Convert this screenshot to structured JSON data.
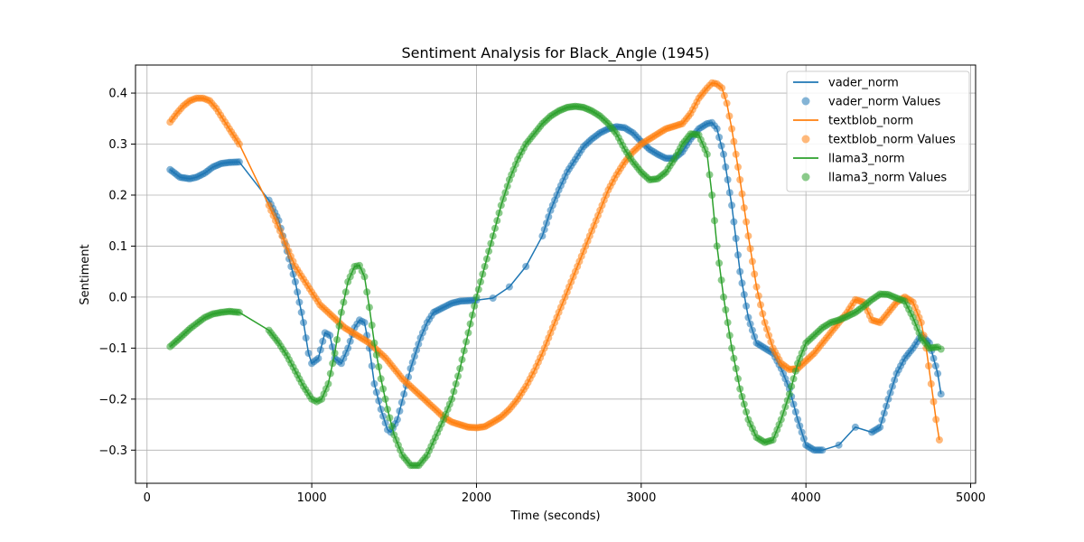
{
  "chart_data": {
    "type": "line",
    "title": "Sentiment Analysis for Black_Angle (1945)",
    "xlabel": "Time (seconds)",
    "ylabel": "Sentiment",
    "xlim": [
      -70,
      5030
    ],
    "ylim": [
      -0.365,
      0.455
    ],
    "xticks": [
      0,
      1000,
      2000,
      3000,
      4000,
      5000
    ],
    "yticks": [
      -0.3,
      -0.2,
      -0.1,
      0.0,
      0.1,
      0.2,
      0.3,
      0.4
    ],
    "ytick_labels": [
      "−0.3",
      "−0.2",
      "−0.1",
      "0.0",
      "0.1",
      "0.2",
      "0.3",
      "0.4"
    ],
    "grid": true,
    "legend_position": "top-right",
    "legend": [
      "vader_norm",
      "vader_norm Values",
      "textblob_norm",
      "textblob_norm Values",
      "llama3_norm",
      "llama3_norm Values"
    ],
    "series": [
      {
        "name": "vader_norm",
        "values_name": "vader_norm Values",
        "color": "#1f77b4",
        "x": [
          140,
          200,
          260,
          300,
          350,
          400,
          450,
          500,
          560,
          740,
          800,
          850,
          900,
          950,
          980,
          1000,
          1040,
          1080,
          1110,
          1140,
          1180,
          1220,
          1260,
          1290,
          1320,
          1350,
          1380,
          1420,
          1460,
          1480,
          1520,
          1560,
          1600,
          1660,
          1700,
          1740,
          1800,
          1850,
          1900,
          1950,
          2000,
          2100,
          2200,
          2300,
          2400,
          2450,
          2500,
          2550,
          2600,
          2650,
          2700,
          2750,
          2800,
          2850,
          2900,
          2950,
          3000,
          3050,
          3100,
          3150,
          3200,
          3250,
          3300,
          3350,
          3400,
          3430,
          3460,
          3500,
          3550,
          3600,
          3650,
          3700,
          3750,
          3800,
          3850,
          3900,
          3950,
          4000,
          4050,
          4100,
          4200,
          4300,
          4400,
          4450,
          4500,
          4550,
          4600,
          4650,
          4700,
          4750,
          4800,
          4820
        ],
        "y": [
          0.25,
          0.235,
          0.232,
          0.235,
          0.243,
          0.255,
          0.262,
          0.264,
          0.265,
          0.19,
          0.15,
          0.09,
          0.03,
          -0.05,
          -0.11,
          -0.13,
          -0.12,
          -0.07,
          -0.075,
          -0.12,
          -0.13,
          -0.1,
          -0.06,
          -0.045,
          -0.05,
          -0.1,
          -0.17,
          -0.22,
          -0.26,
          -0.265,
          -0.24,
          -0.19,
          -0.14,
          -0.08,
          -0.05,
          -0.03,
          -0.02,
          -0.012,
          -0.008,
          -0.007,
          -0.006,
          -0.002,
          0.02,
          0.06,
          0.12,
          0.17,
          0.21,
          0.245,
          0.27,
          0.295,
          0.31,
          0.322,
          0.33,
          0.334,
          0.332,
          0.322,
          0.305,
          0.29,
          0.28,
          0.272,
          0.272,
          0.285,
          0.31,
          0.33,
          0.34,
          0.342,
          0.33,
          0.28,
          0.18,
          0.05,
          -0.04,
          -0.09,
          -0.1,
          -0.11,
          -0.14,
          -0.18,
          -0.24,
          -0.29,
          -0.3,
          -0.3,
          -0.29,
          -0.255,
          -0.265,
          -0.255,
          -0.2,
          -0.15,
          -0.12,
          -0.1,
          -0.075,
          -0.09,
          -0.15,
          -0.19
        ]
      },
      {
        "name": "textblob_norm",
        "values_name": "textblob_norm Values",
        "color": "#ff7f0e",
        "x": [
          140,
          180,
          220,
          260,
          300,
          340,
          380,
          420,
          460,
          500,
          560,
          740,
          780,
          820,
          860,
          900,
          950,
          1000,
          1050,
          1100,
          1150,
          1200,
          1250,
          1300,
          1350,
          1400,
          1450,
          1500,
          1550,
          1600,
          1650,
          1700,
          1750,
          1800,
          1850,
          1900,
          1950,
          2000,
          2050,
          2100,
          2150,
          2200,
          2250,
          2300,
          2350,
          2400,
          2450,
          2500,
          2550,
          2600,
          2650,
          2700,
          2750,
          2800,
          2850,
          2900,
          2950,
          3000,
          3050,
          3100,
          3150,
          3200,
          3250,
          3300,
          3350,
          3400,
          3430,
          3460,
          3490,
          3520,
          3550,
          3600,
          3650,
          3700,
          3750,
          3800,
          3850,
          3900,
          3950,
          4000,
          4050,
          4100,
          4150,
          4200,
          4250,
          4300,
          4350,
          4400,
          4450,
          4500,
          4550,
          4600,
          4650,
          4700,
          4730,
          4760,
          4790,
          4810
        ],
        "y": [
          0.343,
          0.36,
          0.375,
          0.385,
          0.39,
          0.39,
          0.385,
          0.37,
          0.35,
          0.33,
          0.3,
          0.18,
          0.15,
          0.12,
          0.09,
          0.06,
          0.035,
          0.01,
          -0.015,
          -0.03,
          -0.045,
          -0.06,
          -0.07,
          -0.08,
          -0.09,
          -0.105,
          -0.12,
          -0.14,
          -0.16,
          -0.175,
          -0.19,
          -0.205,
          -0.22,
          -0.235,
          -0.245,
          -0.25,
          -0.255,
          -0.256,
          -0.254,
          -0.245,
          -0.235,
          -0.22,
          -0.2,
          -0.175,
          -0.145,
          -0.11,
          -0.07,
          -0.03,
          0.01,
          0.05,
          0.09,
          0.13,
          0.17,
          0.21,
          0.24,
          0.265,
          0.285,
          0.3,
          0.31,
          0.32,
          0.33,
          0.335,
          0.34,
          0.36,
          0.39,
          0.41,
          0.42,
          0.418,
          0.41,
          0.38,
          0.33,
          0.23,
          0.12,
          0.02,
          -0.05,
          -0.1,
          -0.13,
          -0.142,
          -0.14,
          -0.125,
          -0.11,
          -0.09,
          -0.07,
          -0.05,
          -0.03,
          -0.005,
          -0.01,
          -0.045,
          -0.05,
          -0.03,
          -0.01,
          0.0,
          -0.01,
          -0.05,
          -0.1,
          -0.17,
          -0.24,
          -0.28
        ]
      },
      {
        "name": "llama3_norm",
        "values_name": "llama3_norm Values",
        "color": "#2ca02c",
        "x": [
          140,
          200,
          260,
          300,
          350,
          400,
          450,
          500,
          560,
          740,
          800,
          850,
          900,
          950,
          1000,
          1030,
          1060,
          1100,
          1140,
          1180,
          1220,
          1260,
          1290,
          1320,
          1350,
          1380,
          1420,
          1460,
          1500,
          1550,
          1600,
          1650,
          1700,
          1750,
          1800,
          1850,
          1900,
          1950,
          2000,
          2050,
          2100,
          2150,
          2200,
          2250,
          2300,
          2350,
          2400,
          2450,
          2500,
          2550,
          2600,
          2650,
          2700,
          2750,
          2800,
          2850,
          2900,
          2950,
          3000,
          3050,
          3100,
          3150,
          3200,
          3250,
          3300,
          3350,
          3400,
          3430,
          3460,
          3500,
          3550,
          3600,
          3650,
          3700,
          3750,
          3800,
          3850,
          3900,
          3950,
          4000,
          4050,
          4100,
          4150,
          4200,
          4250,
          4300,
          4350,
          4400,
          4450,
          4500,
          4550,
          4600,
          4650,
          4700,
          4750,
          4800,
          4820
        ],
        "y": [
          -0.097,
          -0.08,
          -0.062,
          -0.052,
          -0.04,
          -0.033,
          -0.03,
          -0.028,
          -0.03,
          -0.065,
          -0.09,
          -0.115,
          -0.145,
          -0.175,
          -0.2,
          -0.205,
          -0.2,
          -0.17,
          -0.11,
          -0.03,
          0.03,
          0.06,
          0.062,
          0.04,
          -0.02,
          -0.09,
          -0.16,
          -0.22,
          -0.27,
          -0.31,
          -0.33,
          -0.33,
          -0.31,
          -0.275,
          -0.24,
          -0.2,
          -0.14,
          -0.07,
          0.0,
          0.06,
          0.12,
          0.18,
          0.23,
          0.27,
          0.3,
          0.32,
          0.34,
          0.355,
          0.365,
          0.372,
          0.374,
          0.372,
          0.365,
          0.355,
          0.34,
          0.32,
          0.29,
          0.265,
          0.245,
          0.23,
          0.232,
          0.245,
          0.27,
          0.3,
          0.32,
          0.318,
          0.28,
          0.2,
          0.1,
          0.0,
          -0.1,
          -0.18,
          -0.24,
          -0.275,
          -0.285,
          -0.28,
          -0.24,
          -0.19,
          -0.13,
          -0.09,
          -0.075,
          -0.06,
          -0.05,
          -0.045,
          -0.038,
          -0.03,
          -0.018,
          -0.005,
          0.006,
          0.005,
          -0.002,
          -0.008,
          -0.04,
          -0.08,
          -0.1,
          -0.098,
          -0.102
        ]
      }
    ]
  }
}
